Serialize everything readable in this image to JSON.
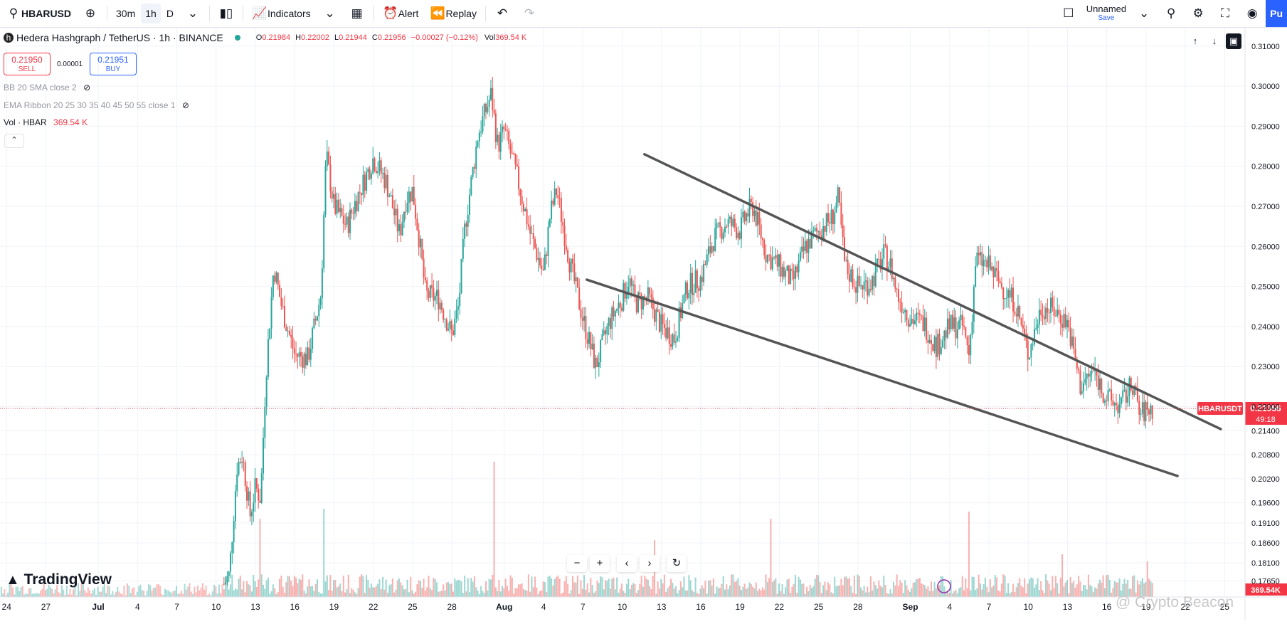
{
  "toolbar": {
    "symbol": "HBARUSD",
    "intervals": [
      "30m",
      "1h",
      "D"
    ],
    "indicators_label": "Indicators",
    "alert_label": "Alert",
    "replay_label": "Replay",
    "layout_name": "Unnamed",
    "save_label": "Save",
    "publish_label": "Pu"
  },
  "legend": {
    "title": "Hedera Hashgraph / TetherUS · 1h · BINANCE",
    "ohlc": [
      {
        "k": "O",
        "v": "0.21984"
      },
      {
        "k": "H",
        "v": "0.22002"
      },
      {
        "k": "L",
        "v": "0.21944"
      },
      {
        "k": "C",
        "v": "0.21956"
      },
      {
        "k": "",
        "v": "−0.00027 (−0.12%)"
      },
      {
        "k": "Vol",
        "v": "369.54 K"
      }
    ]
  },
  "trade": {
    "sell_price": "0.21950",
    "sell_label": "SELL",
    "spread": "0.00001",
    "buy_price": "0.21951",
    "buy_label": "BUY"
  },
  "indicators": {
    "bb": "BB 20 SMA close 2",
    "ema": "EMA Ribbon 20 25 30 35 40 45 50 55 close 1",
    "vol_label": "Vol · HBAR",
    "vol_value": "369.54 K"
  },
  "branding": {
    "logo_text": "TradingView",
    "watermark": "@ Crypto Beacon"
  },
  "colors": {
    "up": "#26a69a",
    "down": "#ef5350",
    "trendline": "#555555",
    "price_label_bg": "#f23645",
    "accent": "#2962ff"
  },
  "chart_data": {
    "type": "candlestick",
    "symbol_tag": "HBARUSDT",
    "last_price": "0.21956",
    "countdown": "49:18",
    "last_volume_label": "369.54K",
    "ylim": [
      0.1725,
      0.3128
    ],
    "y_ticks": [
      "0.31000",
      "0.30000",
      "0.29000",
      "0.28000",
      "0.27000",
      "0.26000",
      "0.25000",
      "0.24000",
      "0.23000",
      "0.22000",
      "0.21400",
      "0.20800",
      "0.20200",
      "0.19600",
      "0.19100",
      "0.18600",
      "0.18100",
      "0.17650"
    ],
    "y_tick_values": [
      0.31,
      0.3,
      0.29,
      0.28,
      0.27,
      0.26,
      0.25,
      0.24,
      0.23,
      0.22,
      0.214,
      0.208,
      0.202,
      0.196,
      0.191,
      0.186,
      0.181,
      0.1765
    ],
    "x_ticks": [
      "24",
      "27",
      "Jul",
      "4",
      "7",
      "10",
      "13",
      "16",
      "19",
      "22",
      "25",
      "28",
      "Aug",
      "4",
      "7",
      "10",
      "13",
      "16",
      "19",
      "22",
      "25",
      "28",
      "Sep",
      "4",
      "7",
      "10",
      "13",
      "16",
      "19",
      "22",
      "25"
    ],
    "x_tick_days": [
      -7,
      -4,
      0,
      3,
      6,
      9,
      12,
      15,
      18,
      21,
      24,
      27,
      31,
      34,
      37,
      40,
      43,
      46,
      49,
      52,
      55,
      58,
      62,
      65,
      68,
      71,
      74,
      77,
      80,
      83,
      86
    ],
    "x_range_days": [
      -7.5,
      87.5
    ],
    "price_path": [
      [
        0,
        0.1725
      ],
      [
        9,
        0.1725
      ],
      [
        10,
        0.178
      ],
      [
        10.6,
        0.205
      ],
      [
        11,
        0.208
      ],
      [
        11.6,
        0.193
      ],
      [
        12,
        0.2
      ],
      [
        12.4,
        0.197
      ],
      [
        12.8,
        0.228
      ],
      [
        13.4,
        0.255
      ],
      [
        14,
        0.245
      ],
      [
        15,
        0.233
      ],
      [
        16,
        0.232
      ],
      [
        16.5,
        0.24
      ],
      [
        17,
        0.248
      ],
      [
        17.4,
        0.283
      ],
      [
        18,
        0.27
      ],
      [
        19,
        0.265
      ],
      [
        19.5,
        0.27
      ],
      [
        20,
        0.274
      ],
      [
        21,
        0.282
      ],
      [
        22,
        0.276
      ],
      [
        23,
        0.263
      ],
      [
        23.5,
        0.272
      ],
      [
        24,
        0.274
      ],
      [
        24.5,
        0.262
      ],
      [
        25,
        0.248
      ],
      [
        26,
        0.247
      ],
      [
        27,
        0.238
      ],
      [
        27.5,
        0.245
      ],
      [
        28,
        0.265
      ],
      [
        29,
        0.288
      ],
      [
        30,
        0.298
      ],
      [
        30.5,
        0.285
      ],
      [
        31,
        0.289
      ],
      [
        32,
        0.277
      ],
      [
        33,
        0.263
      ],
      [
        34,
        0.253
      ],
      [
        34.5,
        0.268
      ],
      [
        35,
        0.274
      ],
      [
        36,
        0.256
      ],
      [
        37,
        0.242
      ],
      [
        37.5,
        0.236
      ],
      [
        38,
        0.23
      ],
      [
        39,
        0.241
      ],
      [
        40,
        0.247
      ],
      [
        40.5,
        0.252
      ],
      [
        41,
        0.246
      ],
      [
        42,
        0.247
      ],
      [
        43,
        0.24
      ],
      [
        44,
        0.237
      ],
      [
        44.5,
        0.244
      ],
      [
        45,
        0.25
      ],
      [
        46,
        0.252
      ],
      [
        47,
        0.262
      ],
      [
        48,
        0.266
      ],
      [
        49,
        0.264
      ],
      [
        49.5,
        0.268
      ],
      [
        50,
        0.27
      ],
      [
        51,
        0.258
      ],
      [
        52,
        0.255
      ],
      [
        53,
        0.251
      ],
      [
        54,
        0.26
      ],
      [
        55,
        0.264
      ],
      [
        56,
        0.267
      ],
      [
        56.5,
        0.272
      ],
      [
        57,
        0.255
      ],
      [
        58,
        0.25
      ],
      [
        59,
        0.251
      ],
      [
        60,
        0.258
      ],
      [
        60.5,
        0.255
      ],
      [
        61,
        0.248
      ],
      [
        62,
        0.242
      ],
      [
        63,
        0.241
      ],
      [
        64,
        0.235
      ],
      [
        65,
        0.24
      ],
      [
        66,
        0.24
      ],
      [
        66.5,
        0.233
      ],
      [
        67,
        0.257
      ],
      [
        68,
        0.255
      ],
      [
        69,
        0.25
      ],
      [
        70,
        0.246
      ],
      [
        70.5,
        0.24
      ],
      [
        71,
        0.233
      ],
      [
        72,
        0.245
      ],
      [
        73,
        0.244
      ],
      [
        74,
        0.241
      ],
      [
        74.5,
        0.233
      ],
      [
        75,
        0.225
      ],
      [
        76,
        0.229
      ],
      [
        77,
        0.222
      ],
      [
        78,
        0.22
      ],
      [
        79,
        0.226
      ],
      [
        79.5,
        0.218
      ],
      [
        80,
        0.219
      ],
      [
        80.5,
        0.2196
      ]
    ],
    "volume_spikes": [
      [
        12.3,
        0.55
      ],
      [
        17.2,
        0.62
      ],
      [
        30.2,
        0.95
      ],
      [
        42.5,
        0.4
      ],
      [
        51.4,
        0.55
      ],
      [
        66.5,
        0.6
      ],
      [
        73.6,
        0.3
      ],
      [
        80.1,
        0.25
      ]
    ],
    "trendlines": [
      {
        "name": "upper",
        "from": [
          41.7,
          0.283
        ],
        "to": [
          85.7,
          0.2144
        ]
      },
      {
        "name": "lower",
        "from": [
          37.3,
          0.2517
        ],
        "to": [
          82.4,
          0.2027
        ]
      }
    ]
  }
}
